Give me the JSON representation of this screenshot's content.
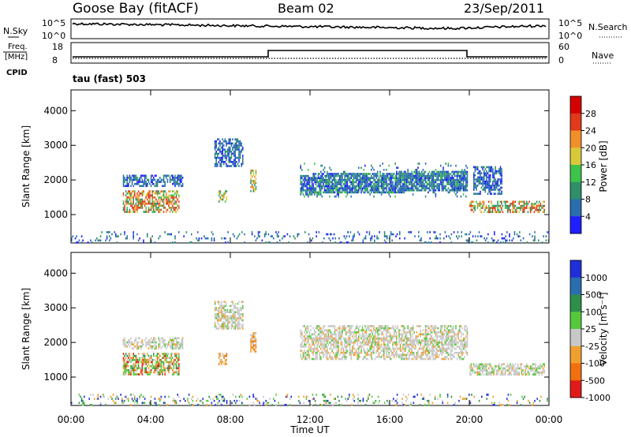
{
  "header": {
    "station": "Goose Bay (fitACF)",
    "beam": "Beam 02",
    "date": "23/Sep/2011"
  },
  "top_strip": {
    "left_label": "N.Sky",
    "right_label": "N.Search",
    "left_ticks": [
      "10^5",
      "10^0"
    ],
    "right_ticks": [
      "10^5",
      "10^0"
    ]
  },
  "freq_strip": {
    "left_label_1": "Freq.",
    "left_label_2": "[MHz]",
    "left_label_3": "CPID",
    "right_label": "Nave",
    "left_ticks": [
      "18",
      "8"
    ],
    "right_ticks": [
      "60",
      "0"
    ]
  },
  "mode_label": "tau (fast) 503",
  "chart_data": [
    {
      "type": "heatmap",
      "name": "power",
      "ylabel": "Slant Range [km]",
      "ylim": [
        180,
        4600
      ],
      "y_ticks": [
        "1000",
        "2000",
        "3000",
        "4000"
      ],
      "colorbar_label": "Power [dB]",
      "colorbar_ticks": [
        "4",
        "8",
        "12",
        "16",
        "20",
        "24",
        "28"
      ],
      "colorbar_colors": [
        "#1f1fff",
        "#2a6eb0",
        "#2e8f6a",
        "#3ec24a",
        "#d8c93c",
        "#f0902a",
        "#e03a1a",
        "#d40000"
      ],
      "regions": [
        {
          "t0": 2.6,
          "t1": 5.4,
          "r0": 1050,
          "r1": 1700,
          "level": "high"
        },
        {
          "t0": 2.6,
          "t1": 5.6,
          "r0": 1850,
          "r1": 2150,
          "level": "low"
        },
        {
          "t0": 7.4,
          "t1": 7.8,
          "r0": 1350,
          "r1": 1700,
          "level": "mid"
        },
        {
          "t0": 7.2,
          "t1": 8.6,
          "r0": 2400,
          "r1": 3200,
          "level": "low"
        },
        {
          "t0": 9.0,
          "t1": 9.3,
          "r0": 1700,
          "r1": 2300,
          "level": "mid"
        },
        {
          "t0": 11.5,
          "t1": 19.9,
          "r0": 1500,
          "r1": 2500,
          "level": "band"
        },
        {
          "t0": 20.0,
          "t1": 23.8,
          "r0": 1050,
          "r1": 1400,
          "level": "high"
        },
        {
          "t0": 20.2,
          "t1": 21.6,
          "r0": 1600,
          "r1": 2400,
          "level": "low"
        },
        {
          "t0": 0.0,
          "t1": 24.0,
          "r0": 180,
          "r1": 520,
          "level": "low"
        }
      ]
    },
    {
      "type": "heatmap",
      "name": "velocity",
      "ylabel": "Slant Range [km]",
      "xlabel": "Time UT",
      "ylim": [
        180,
        4600
      ],
      "y_ticks": [
        "1000",
        "2000",
        "3000",
        "4000"
      ],
      "x_ticks": [
        "00:00",
        "04:00",
        "08:00",
        "12:00",
        "16:00",
        "20:00",
        "00:00"
      ],
      "xlim": [
        0,
        24
      ],
      "colorbar_label": "Velocity [m s⁻¹]",
      "colorbar_ticks": [
        "1000",
        "500",
        "100",
        "25",
        "-25",
        "-100",
        "-500",
        "-1000"
      ],
      "colorbar_colors": [
        "#1f2fd8",
        "#2a6eb0",
        "#2e8f4a",
        "#56c83c",
        "#c8c8c8",
        "#f0a030",
        "#f07010",
        "#e01a1a"
      ],
      "regions": [
        {
          "t0": 2.6,
          "t1": 5.4,
          "r0": 1050,
          "r1": 1700,
          "level": "mixed"
        },
        {
          "t0": 2.6,
          "t1": 5.6,
          "r0": 1850,
          "r1": 2150,
          "level": "grey"
        },
        {
          "t0": 7.4,
          "t1": 7.8,
          "r0": 1350,
          "r1": 1700,
          "level": "orange"
        },
        {
          "t0": 7.2,
          "t1": 8.6,
          "r0": 2400,
          "r1": 3200,
          "level": "grey"
        },
        {
          "t0": 9.0,
          "t1": 9.3,
          "r0": 1700,
          "r1": 2300,
          "level": "orange"
        },
        {
          "t0": 11.5,
          "t1": 19.9,
          "r0": 1500,
          "r1": 2500,
          "level": "grey"
        },
        {
          "t0": 20.0,
          "t1": 23.8,
          "r0": 1050,
          "r1": 1400,
          "level": "grey"
        },
        {
          "t0": 0.0,
          "t1": 24.0,
          "r0": 180,
          "r1": 520,
          "level": "greenish"
        }
      ]
    }
  ]
}
